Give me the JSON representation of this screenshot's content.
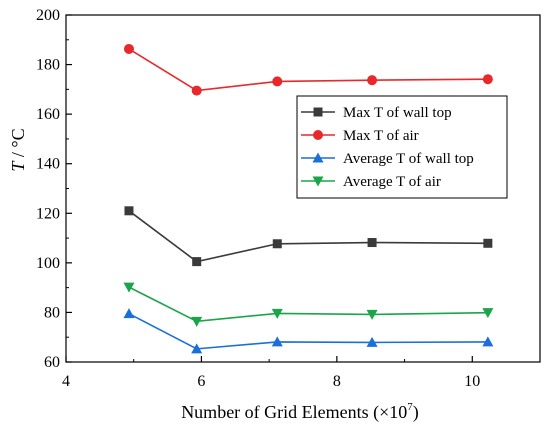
{
  "chart_data": {
    "type": "line",
    "xlabel_prefix": "Number of Grid Elements (×10",
    "xlabel_exponent": "7",
    "xlabel_suffix": ")",
    "ylabel_italic": "T",
    "ylabel_rest": " / °C",
    "xlim": [
      4,
      11
    ],
    "ylim": [
      60,
      200
    ],
    "x_ticks": [
      4,
      6,
      8,
      10
    ],
    "y_ticks": [
      60,
      80,
      100,
      120,
      140,
      160,
      180,
      200
    ],
    "x_tick_labels": [
      "4",
      "6",
      "8",
      "10"
    ],
    "y_tick_labels": [
      "60",
      "80",
      "100",
      "120",
      "140",
      "160",
      "180",
      "200"
    ],
    "x": [
      4.93,
      5.93,
      7.12,
      8.52,
      10.23
    ],
    "legend_position": "upper-right",
    "grid": false,
    "series": [
      {
        "name": "Max T of wall top",
        "color": "#3a3a3a",
        "marker": "square",
        "values": [
          121.0,
          100.5,
          107.7,
          108.2,
          107.9
        ]
      },
      {
        "name": "Max T of air",
        "color": "#e8292b",
        "marker": "circle",
        "values": [
          186.3,
          169.5,
          173.2,
          173.7,
          174.1
        ]
      },
      {
        "name": "Average T of wall top",
        "color": "#1a6fd9",
        "marker": "triangle-up",
        "values": [
          79.5,
          65.3,
          68.1,
          67.9,
          68.1
        ]
      },
      {
        "name": "Average T of air",
        "color": "#1aa54a",
        "marker": "triangle-down",
        "values": [
          90.2,
          76.4,
          79.6,
          79.2,
          79.9
        ]
      }
    ]
  }
}
